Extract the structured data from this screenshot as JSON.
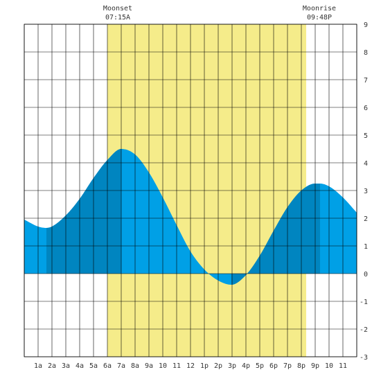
{
  "chart_data": {
    "type": "area",
    "title": "",
    "xlabel": "",
    "ylabel": "",
    "xlim": [
      0,
      24
    ],
    "ylim": [
      -3,
      9
    ],
    "x_tick_labels": [
      "1a",
      "2a",
      "3a",
      "4a",
      "5a",
      "6a",
      "7a",
      "8a",
      "9a",
      "10",
      "11",
      "12",
      "1p",
      "2p",
      "3p",
      "4p",
      "5p",
      "6p",
      "7p",
      "8p",
      "9p",
      "10",
      "11"
    ],
    "y_tick_labels": [
      "-3",
      "-2",
      "-1",
      "0",
      "1",
      "2",
      "3",
      "4",
      "5",
      "6",
      "7",
      "8",
      "9"
    ],
    "daylight_band": {
      "start_hour": 6.0,
      "end_hour": 20.35,
      "color": "#f5ec8a"
    },
    "tide_extremes": [
      {
        "hour": 1.6,
        "height": 1.65,
        "kind": "low"
      },
      {
        "hour": 7.0,
        "height": 4.5,
        "kind": "high"
      },
      {
        "hour": 14.95,
        "height": -0.4,
        "kind": "low"
      },
      {
        "hour": 21.35,
        "height": 3.25,
        "kind": "high"
      }
    ],
    "series": [
      {
        "x": [
          0,
          1,
          1.6,
          2,
          3,
          4,
          5,
          6,
          7,
          8,
          9,
          10,
          11,
          12,
          13,
          14,
          14.95,
          16,
          17,
          18,
          19,
          20,
          21,
          21.35,
          22,
          23,
          24
        ],
        "values": [
          1.95,
          1.7,
          1.65,
          1.7,
          2.1,
          2.7,
          3.45,
          4.1,
          4.5,
          4.3,
          3.65,
          2.75,
          1.75,
          0.8,
          0.15,
          -0.25,
          -0.4,
          -0.05,
          0.65,
          1.55,
          2.4,
          3.0,
          3.25,
          3.25,
          3.15,
          2.75,
          2.2
        ],
        "fill": "#00a0e6",
        "dark_fill": "#0085c0"
      }
    ],
    "annotations": [
      {
        "label": "Moonset",
        "time": "07:15A",
        "hour": 7.25
      },
      {
        "label": "Moonrise",
        "time": "09:48P",
        "hour": 21.8
      }
    ],
    "grid": true
  }
}
